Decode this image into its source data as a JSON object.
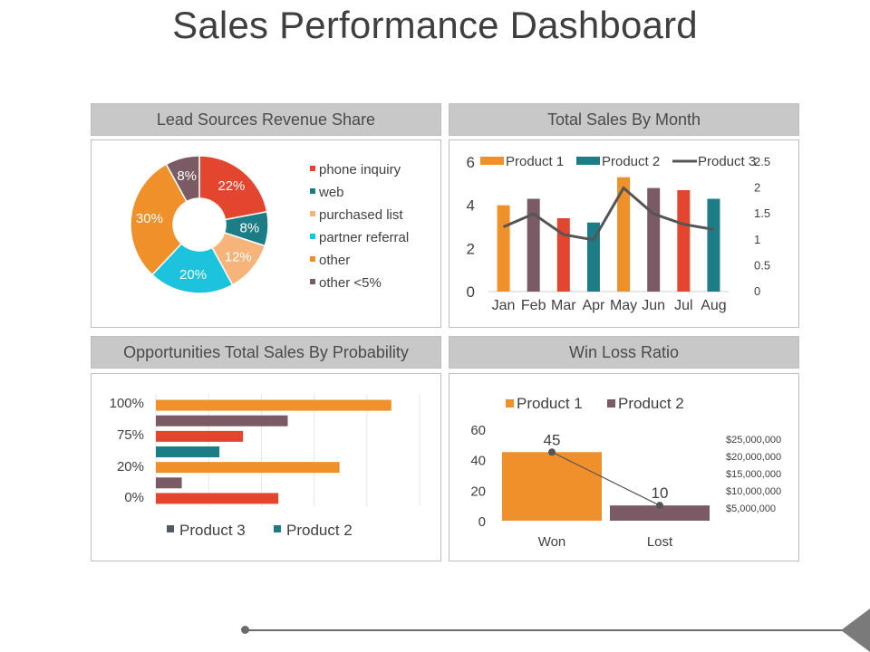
{
  "page": {
    "title": "Sales Performance Dashboard"
  },
  "colors": {
    "orange": "#f0902a",
    "red": "#e3452f",
    "teal": "#1d7d86",
    "light_orange": "#f6b47a",
    "cyan": "#1bc4dc",
    "mauve": "#7a5a65",
    "dark": "#4f5a63",
    "line": "#555555"
  },
  "panels": {
    "lead_sources": {
      "title": "Lead Sources Revenue Share"
    },
    "sales_by_month": {
      "title": "Total Sales By Month"
    },
    "opportunities": {
      "title": "Opportunities Total Sales By Probability"
    },
    "win_loss": {
      "title": "Win Loss Ratio"
    }
  },
  "chart_data": [
    {
      "id": "lead_sources",
      "type": "pie",
      "title": "Lead Sources Revenue Share",
      "slices": [
        {
          "label": "phone inquiry",
          "value": 22,
          "display": "22%",
          "color": "#e3452f"
        },
        {
          "label": "web",
          "value": 8,
          "display": "8%",
          "color": "#1d7d86"
        },
        {
          "label": "purchased list",
          "value": 12,
          "display": "12%",
          "color": "#f6b47a"
        },
        {
          "label": "partner referral",
          "value": 20,
          "display": "20%",
          "color": "#1bc4dc"
        },
        {
          "label": "other",
          "value": 30,
          "display": "30%",
          "color": "#f0902a"
        },
        {
          "label": "other <5%",
          "value": 8,
          "display": "8%",
          "color": "#7a5a65"
        }
      ]
    },
    {
      "id": "sales_by_month",
      "type": "bar",
      "title": "Total Sales By Month",
      "categories": [
        "Jan",
        "Feb",
        "Mar",
        "Apr",
        "May",
        "Jun",
        "Jul",
        "Aug"
      ],
      "series": [
        {
          "name": "Product 1",
          "kind": "bar",
          "color": "#f0902a"
        },
        {
          "name": "Product 2",
          "kind": "bar",
          "color": "#1d7d86"
        },
        {
          "name": "Product 3",
          "kind": "line",
          "color": "#555555",
          "values": [
            1.25,
            1.5,
            1.1,
            1.0,
            2.0,
            1.5,
            1.3,
            1.2
          ]
        }
      ],
      "bars": [
        {
          "month": "Jan",
          "value": 4.0,
          "color": "#f0902a"
        },
        {
          "month": "Feb",
          "value": 4.3,
          "color": "#7a5a65"
        },
        {
          "month": "Mar",
          "value": 3.4,
          "color": "#e3452f"
        },
        {
          "month": "Apr",
          "value": 3.2,
          "color": "#1d7d86"
        },
        {
          "month": "May",
          "value": 5.3,
          "color": "#f0902a"
        },
        {
          "month": "Jun",
          "value": 4.8,
          "color": "#7a5a65"
        },
        {
          "month": "Jul",
          "value": 4.7,
          "color": "#e3452f"
        },
        {
          "month": "Aug",
          "value": 4.3,
          "color": "#1d7d86"
        }
      ],
      "ylim": [
        0,
        6
      ],
      "yticks": [
        "0",
        "2",
        "4",
        "6"
      ],
      "y2lim": [
        0,
        2.5
      ],
      "y2ticks": [
        "0",
        "0.5",
        "1",
        "1.5",
        "2",
        "2.5"
      ]
    },
    {
      "id": "opportunities",
      "type": "bar",
      "orientation": "horizontal",
      "title": "Opportunities Total Sales By Probability",
      "categories": [
        "100%",
        "75%",
        "20%",
        "0%"
      ],
      "bars": [
        {
          "value": 100,
          "color": "#f0902a"
        },
        {
          "value": 56,
          "color": "#7a5a65"
        },
        {
          "value": 37,
          "color": "#e3452f"
        },
        {
          "value": 27,
          "color": "#1d7d86"
        },
        {
          "value": 78,
          "color": "#f0902a"
        },
        {
          "value": 11,
          "color": "#7a5a65"
        },
        {
          "value": 52,
          "color": "#e3452f"
        }
      ],
      "xlim": [
        0,
        112
      ],
      "legend": [
        {
          "name": "Product 3",
          "color": "#4f5a63"
        },
        {
          "name": "Product 2",
          "color": "#1d7d86"
        }
      ]
    },
    {
      "id": "win_loss",
      "type": "bar",
      "title": "Win Loss Ratio",
      "categories": [
        "Won",
        "Lost"
      ],
      "series": [
        {
          "name": "Product 1",
          "color": "#f0902a",
          "values": [
            45,
            0
          ]
        },
        {
          "name": "Product 2",
          "color": "#7a5a65",
          "values": [
            0,
            10
          ]
        }
      ],
      "bar_values": [
        45,
        10
      ],
      "labels": [
        "45",
        "10"
      ],
      "ylim": [
        0,
        60
      ],
      "yticks": [
        "0",
        "20",
        "40",
        "60"
      ],
      "secondary_axis_labels": [
        "$25,000,000",
        "$20,000,000",
        "$15,000,000",
        "$10,000,000",
        "$5,000,000"
      ]
    }
  ]
}
